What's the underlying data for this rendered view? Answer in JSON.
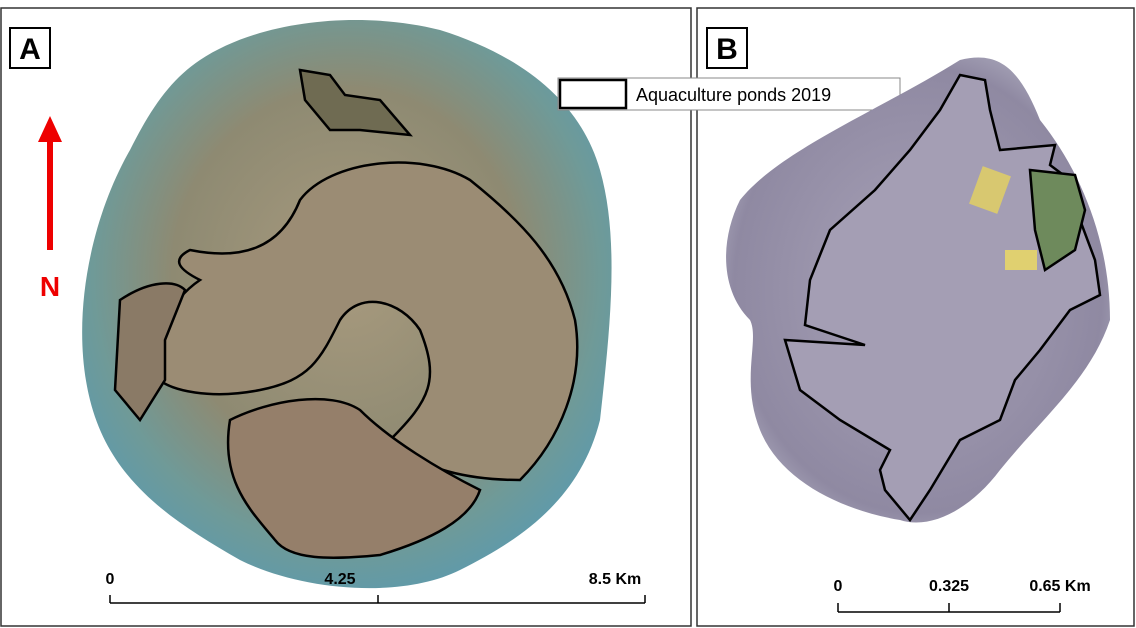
{
  "panels": [
    {
      "label": "A",
      "north": "N",
      "legend": "Aquaculture ponds 2019",
      "scale": [
        "0",
        "4.25",
        "8.5 Km"
      ]
    },
    {
      "label": "B",
      "scale": [
        "0",
        "0.325",
        "0.65 Km"
      ]
    }
  ]
}
